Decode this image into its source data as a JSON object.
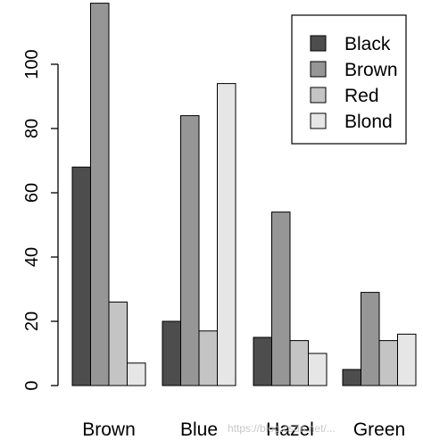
{
  "chart_data": {
    "type": "bar",
    "grouped": true,
    "categories": [
      "Brown",
      "Blue",
      "Hazel",
      "Green"
    ],
    "series": [
      {
        "name": "Black",
        "values": [
          68,
          20,
          15,
          5
        ],
        "color": "#4d4d4d"
      },
      {
        "name": "Brown",
        "values": [
          119,
          84,
          54,
          29
        ],
        "color": "#969696"
      },
      {
        "name": "Red",
        "values": [
          26,
          17,
          14,
          14
        ],
        "color": "#c4c4c4"
      },
      {
        "name": "Blond",
        "values": [
          7,
          94,
          10,
          16
        ],
        "color": "#e6e6e6"
      }
    ],
    "yticks": [
      0,
      20,
      40,
      60,
      80,
      100
    ],
    "ylim": [
      0,
      119
    ],
    "legend_position": "top-right",
    "grid": false,
    "title": "",
    "xlabel": "",
    "ylabel": ""
  },
  "watermark": "https://blog.csdn.net/..."
}
